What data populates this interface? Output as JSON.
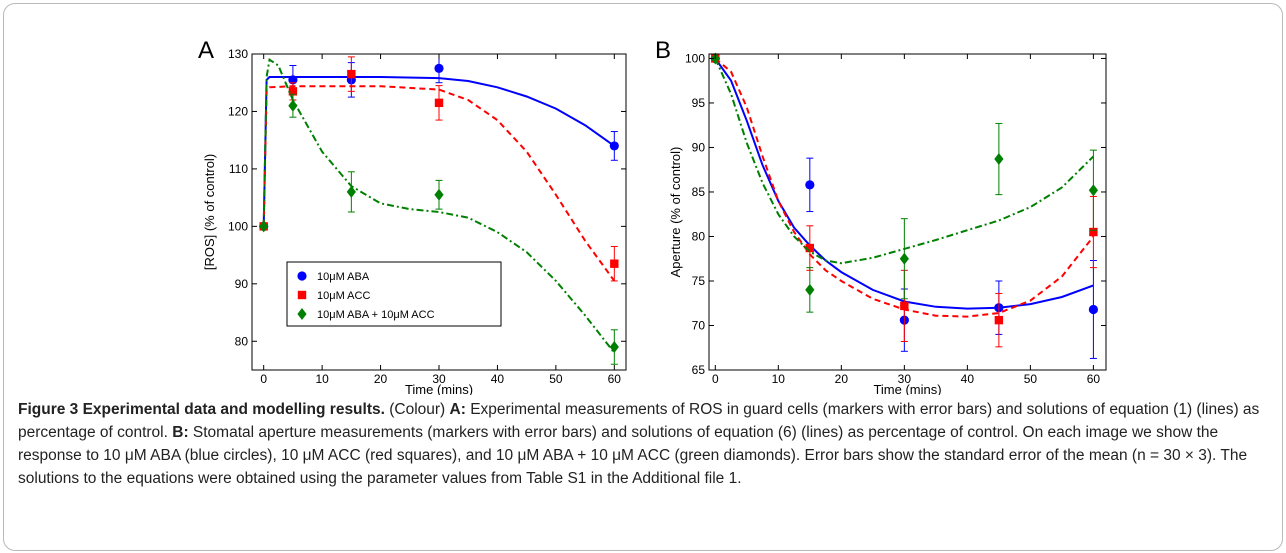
{
  "chart_data": [
    {
      "type": "line",
      "panel_label": "A",
      "title": "",
      "xlabel": "Time (mins)",
      "ylabel": "[ROS] (% of control)",
      "xlim": [
        -2,
        62
      ],
      "ylim": [
        75,
        130
      ],
      "xticks": [
        0,
        10,
        20,
        30,
        40,
        50,
        60
      ],
      "yticks": [
        80,
        90,
        100,
        110,
        120,
        130
      ],
      "grid": false,
      "legend_position": "lower-left",
      "series": [
        {
          "name": "10μM ABA",
          "color": "#0000ff",
          "marker": "circle",
          "points": [
            {
              "x": 0,
              "y": 100,
              "err": 0
            },
            {
              "x": 5,
              "y": 125.5,
              "err": 2.5
            },
            {
              "x": 15,
              "y": 125.5,
              "err": 3
            },
            {
              "x": 30,
              "y": 127.5,
              "err": 2.5
            },
            {
              "x": 60,
              "y": 114,
              "err": 2.5
            }
          ],
          "model": {
            "dash": "",
            "x": [
              0,
              0.5,
              1,
              5,
              10,
              20,
              30,
              35,
              40,
              45,
              50,
              55,
              60
            ],
            "y": [
              100,
              125.5,
              126,
              126,
              126,
              126,
              125.8,
              125.3,
              124.2,
              122.6,
              120.5,
              117.6,
              114
            ]
          }
        },
        {
          "name": "10μM ACC",
          "color": "#ff0000",
          "marker": "square",
          "points": [
            {
              "x": 0,
              "y": 100,
              "err": 0
            },
            {
              "x": 5,
              "y": 123.5,
              "err": 1.5
            },
            {
              "x": 15,
              "y": 126.5,
              "err": 3
            },
            {
              "x": 30,
              "y": 121.5,
              "err": 3
            },
            {
              "x": 60,
              "y": 93.5,
              "err": 3
            }
          ],
          "model": {
            "dash": "6,4",
            "x": [
              0,
              0.5,
              1,
              5,
              10,
              20,
              30,
              35,
              40,
              45,
              50,
              55,
              60
            ],
            "y": [
              100,
              123.5,
              124.2,
              124.4,
              124.4,
              124.4,
              123.8,
              122,
              118.5,
              113,
              105.5,
              97.5,
              90.5
            ]
          }
        },
        {
          "name": "10μM ABA + 10μM ACC",
          "color": "#008000",
          "marker": "diamond",
          "points": [
            {
              "x": 0,
              "y": 100,
              "err": 0
            },
            {
              "x": 5,
              "y": 121,
              "err": 2
            },
            {
              "x": 15,
              "y": 106,
              "err": 3.5
            },
            {
              "x": 30,
              "y": 105.5,
              "err": 2.5
            },
            {
              "x": 60,
              "y": 79,
              "err": 3
            }
          ],
          "model": {
            "dash": "7,3,2,3",
            "x": [
              0,
              0.5,
              1,
              2.5,
              5,
              10,
              15,
              20,
              25,
              30,
              35,
              40,
              45,
              50,
              55,
              60
            ],
            "y": [
              100,
              126,
              129,
              128,
              122,
              113,
              107,
              104,
              103,
              102.5,
              101.5,
              99,
              95.5,
              90.5,
              84.5,
              78
            ]
          }
        }
      ]
    },
    {
      "type": "line",
      "panel_label": "B",
      "title": "",
      "xlabel": "Time (mins)",
      "ylabel": "Aperture (% of control)",
      "xlim": [
        -1,
        62
      ],
      "ylim": [
        65,
        100.5
      ],
      "xticks": [
        0,
        10,
        20,
        30,
        40,
        50,
        60
      ],
      "yticks": [
        65,
        70,
        75,
        80,
        85,
        90,
        95,
        100
      ],
      "grid": false,
      "series": [
        {
          "name": "10μM ABA",
          "color": "#0000ff",
          "marker": "circle",
          "points": [
            {
              "x": 0,
              "y": 100,
              "err": 0
            },
            {
              "x": 15,
              "y": 85.8,
              "err": 3
            },
            {
              "x": 30,
              "y": 70.6,
              "err": 3.5
            },
            {
              "x": 45,
              "y": 72,
              "err": 3
            },
            {
              "x": 60,
              "y": 71.8,
              "err": 5.5
            }
          ],
          "model": {
            "dash": "",
            "x": [
              0,
              2.5,
              5,
              7.5,
              10,
              12.5,
              15,
              17.5,
              20,
              25,
              30,
              35,
              40,
              45,
              50,
              55,
              60
            ],
            "y": [
              100,
              97.5,
              93,
              88,
              84,
              81,
              79,
              77.3,
              76,
              74,
              72.7,
              72.1,
              71.9,
              72,
              72.4,
              73.2,
              74.5
            ]
          }
        },
        {
          "name": "10μM ACC",
          "color": "#ff0000",
          "marker": "square",
          "points": [
            {
              "x": 0,
              "y": 100,
              "err": 0
            },
            {
              "x": 15,
              "y": 78.7,
              "err": 2.5
            },
            {
              "x": 30,
              "y": 72.2,
              "err": 4
            },
            {
              "x": 45,
              "y": 70.6,
              "err": 3
            },
            {
              "x": 60,
              "y": 80.5,
              "err": 4
            }
          ],
          "model": {
            "dash": "6,4",
            "x": [
              0,
              2.5,
              5,
              7.5,
              10,
              12.5,
              15,
              17.5,
              20,
              25,
              30,
              35,
              40,
              45,
              50,
              55,
              60
            ],
            "y": [
              100,
              98.5,
              94.5,
              89,
              84,
              80.5,
              78,
              76.2,
              75,
              73,
              71.8,
              71.1,
              71,
              71.4,
              72.8,
              75.5,
              80
            ]
          }
        },
        {
          "name": "10μM ABA + 10μM ACC",
          "color": "#008000",
          "marker": "diamond",
          "points": [
            {
              "x": 0,
              "y": 100,
              "err": 0
            },
            {
              "x": 15,
              "y": 74,
              "err": 2.5
            },
            {
              "x": 30,
              "y": 77.5,
              "err": 4.5
            },
            {
              "x": 45,
              "y": 88.7,
              "err": 4
            },
            {
              "x": 60,
              "y": 85.2,
              "err": 4.5
            }
          ],
          "model": {
            "dash": "7,3,2,3",
            "x": [
              0,
              2.5,
              5,
              7.5,
              10,
              12.5,
              15,
              17.5,
              20,
              25,
              30,
              35,
              40,
              45,
              50,
              55,
              60
            ],
            "y": [
              100,
              96,
              90.5,
              86,
              82.5,
              80,
              78.3,
              77.3,
              77,
              77.6,
              78.6,
              79.6,
              80.7,
              81.8,
              83.3,
              85.5,
              89
            ]
          }
        }
      ]
    }
  ],
  "caption": {
    "heading": "Figure 3 Experimental data and modelling results.",
    "colour_note": " (Colour) ",
    "a_label": "A:",
    "a_text": " Experimental measurements of ROS in guard cells (markers with error bars) and solutions of equation (1) (lines) as percentage of control. ",
    "b_label": "B:",
    "b_text": " Stomatal aperture measurements (markers with error bars) and solutions of equation (6) (lines) as percentage of control. On each image we show the response to 10 μM ABA (blue circles), 10 μM ACC (red squares), and 10 μM ABA + 10 μM ACC (green diamonds). Error bars show the standard error of the mean (n = 30 × 3). The solutions to the equations were obtained using the parameter values from Table S1 in the Additional file 1."
  }
}
